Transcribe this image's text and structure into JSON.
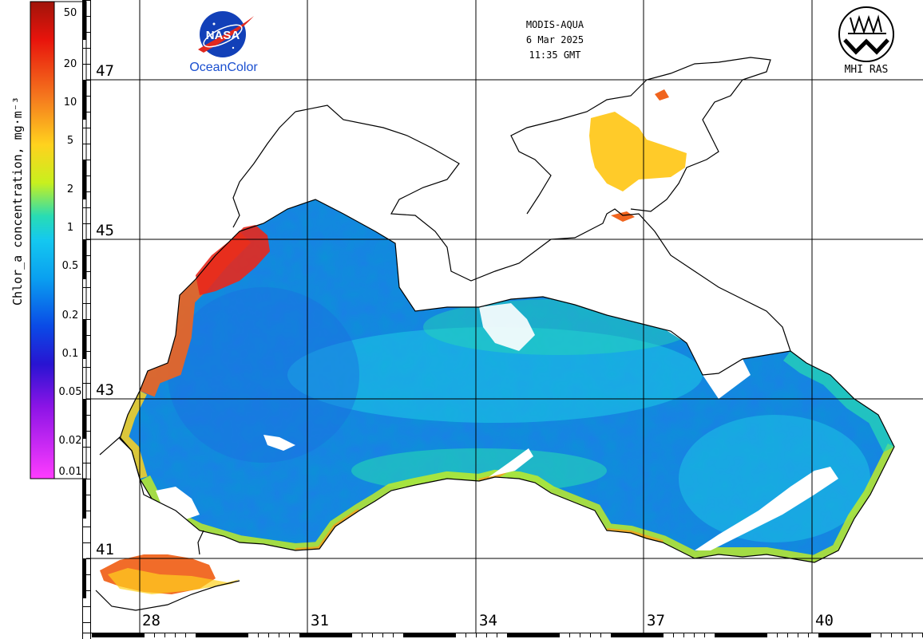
{
  "header": {
    "sensor": "MODIS-AQUA",
    "date": "6 Mar 2025",
    "time": "11:35 GMT"
  },
  "logos": {
    "nasa_emblem": "NASA",
    "nasa_caption": "OceanColor",
    "mhi_caption": "MHI RAS"
  },
  "colorbar": {
    "title": "Chlor_a concentration, mg·m⁻³",
    "ticks": [
      "50",
      "20",
      "10",
      "5",
      "2",
      "1",
      "0.5",
      "0.2",
      "0.1",
      "0.05",
      "0.02",
      "0.01"
    ],
    "colors": [
      "#e8140c",
      "#f5781e",
      "#ffd21e",
      "#c8f01e",
      "#28dcb4",
      "#14c8f0",
      "#0aa0f0",
      "#0a4be6",
      "#2814d2",
      "#8c14e6",
      "#e628f0"
    ]
  },
  "grid": {
    "latitudes": [
      "47",
      "45",
      "43",
      "41"
    ],
    "longitudes": [
      "28",
      "31",
      "34",
      "37",
      "40"
    ]
  },
  "colors": {
    "land": "#ffffff",
    "coastline": "#000000",
    "low_chl": "#1a7fe6",
    "mid_chl": "#1ec8e6",
    "high_chl": "#f0641e"
  }
}
